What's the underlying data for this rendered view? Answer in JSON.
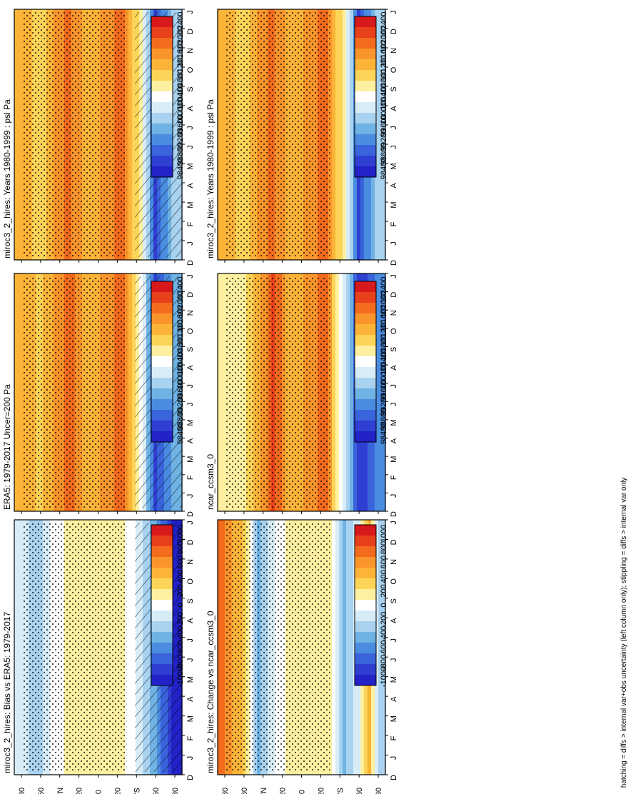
{
  "figure_note": "hatching = diffs > internal var+obs uncertainty (left column only); stippling = diffs > internal var only",
  "chart_data": [
    {
      "id": "p1",
      "type": "heatmap",
      "title": "miroc3_2_hires: Years 1980-1999 : psl Pa",
      "x_ticks": [
        "D",
        "J",
        "F",
        "M",
        "A",
        "M",
        "J",
        "J",
        "A",
        "S",
        "O",
        "N",
        "D",
        "J"
      ],
      "y_ticks": [
        "80",
        "60",
        "°N",
        "20",
        "0",
        "20",
        "°S",
        "60",
        "80"
      ],
      "colorbar": [
        "102400",
        "102000",
        "101600",
        "101200",
        "100800",
        "100400",
        "100000",
        "99600",
        "99200",
        "98800",
        "98400"
      ],
      "scale": "abs",
      "hatching": true,
      "stippling": true,
      "zonal_profile_pa": [
        {
          "lat": 85,
          "v": 101300
        },
        {
          "lat": 60,
          "v": 101000
        },
        {
          "lat": 30,
          "v": 101800
        },
        {
          "lat": 10,
          "v": 101100
        },
        {
          "lat": -25,
          "v": 101900
        },
        {
          "lat": -45,
          "v": 100600
        },
        {
          "lat": -60,
          "v": 98800
        },
        {
          "lat": -80,
          "v": 99800
        }
      ]
    },
    {
      "id": "p2",
      "type": "heatmap",
      "title": "miroc3_2_hires: Years 1980-1999 : psl Pa",
      "x_ticks": [
        "D",
        "J",
        "F",
        "M",
        "A",
        "M",
        "J",
        "J",
        "A",
        "S",
        "O",
        "N",
        "D",
        "J"
      ],
      "y_ticks": [
        "80",
        "60",
        "°N",
        "20",
        "0",
        "20",
        "°S",
        "60",
        "80"
      ],
      "colorbar": [
        "102400",
        "102000",
        "101600",
        "101200",
        "100800",
        "100400",
        "100000",
        "99600",
        "99200",
        "98800",
        "98400"
      ],
      "scale": "abs",
      "hatching": false,
      "stippling": true,
      "zonal_profile_pa": [
        {
          "lat": 85,
          "v": 101300
        },
        {
          "lat": 60,
          "v": 101000
        },
        {
          "lat": 30,
          "v": 101800
        },
        {
          "lat": 10,
          "v": 101100
        },
        {
          "lat": -25,
          "v": 101900
        },
        {
          "lat": -45,
          "v": 100600
        },
        {
          "lat": -60,
          "v": 98800
        },
        {
          "lat": -80,
          "v": 99800
        }
      ]
    },
    {
      "id": "p3",
      "type": "heatmap",
      "title": "ERA5: 1979-2017 Uncer=200 Pa",
      "x_ticks": [
        "D",
        "J",
        "F",
        "M",
        "A",
        "M",
        "J",
        "J",
        "A",
        "S",
        "O",
        "N",
        "D",
        "J"
      ],
      "y_ticks": [
        "80",
        "60",
        "°N",
        "20",
        "0",
        "20",
        "°S",
        "60",
        "80"
      ],
      "colorbar": [
        "102400",
        "102000",
        "101600",
        "101200",
        "100800",
        "100400",
        "100000",
        "99600",
        "99200",
        "98800",
        "98400"
      ],
      "scale": "abs",
      "hatching": true,
      "stippling": true,
      "zonal_profile_pa": [
        {
          "lat": 85,
          "v": 101400
        },
        {
          "lat": 60,
          "v": 101000
        },
        {
          "lat": 30,
          "v": 101900
        },
        {
          "lat": 10,
          "v": 101200
        },
        {
          "lat": -25,
          "v": 101800
        },
        {
          "lat": -45,
          "v": 100500
        },
        {
          "lat": -60,
          "v": 98700
        },
        {
          "lat": -80,
          "v": 99600
        }
      ]
    },
    {
      "id": "p4",
      "type": "heatmap",
      "title": "ncar_ccsm3_0",
      "x_ticks": [
        "D",
        "J",
        "F",
        "M",
        "A",
        "M",
        "J",
        "J",
        "A",
        "S",
        "O",
        "N",
        "D",
        "J"
      ],
      "y_ticks": [
        "80",
        "60",
        "°N",
        "20",
        "0",
        "20",
        "°S",
        "60",
        "80"
      ],
      "colorbar": [
        "102400",
        "102000",
        "101600",
        "101200",
        "100800",
        "100400",
        "100000",
        "99600",
        "99200",
        "98800",
        "98400"
      ],
      "scale": "abs",
      "hatching": false,
      "stippling": true,
      "zonal_profile_pa": [
        {
          "lat": 85,
          "v": 100600
        },
        {
          "lat": 60,
          "v": 100700
        },
        {
          "lat": 30,
          "v": 102000
        },
        {
          "lat": 10,
          "v": 101200
        },
        {
          "lat": -25,
          "v": 101800
        },
        {
          "lat": -45,
          "v": 100200
        },
        {
          "lat": -60,
          "v": 98600
        },
        {
          "lat": -80,
          "v": 99200
        }
      ]
    },
    {
      "id": "p5",
      "type": "heatmap",
      "title": "miroc3_2_hires: Bias vs ERA5: 1979-2017",
      "x_ticks": [
        "D",
        "J",
        "F",
        "M",
        "A",
        "M",
        "J",
        "J",
        "A",
        "S",
        "O",
        "N",
        "D",
        "J"
      ],
      "y_ticks": [
        "80",
        "60",
        "°N",
        "20",
        "0",
        "20",
        "°S",
        "60",
        "80"
      ],
      "colorbar": [
        "1000",
        "800",
        "600",
        "400",
        "200",
        "0",
        "-200",
        "-400",
        "-600",
        "-800",
        "-1000"
      ],
      "scale": "diff",
      "hatching": true,
      "stippling": true,
      "zonal_profile_pa": [
        {
          "lat": 85,
          "v": -100
        },
        {
          "lat": 65,
          "v": -300
        },
        {
          "lat": 45,
          "v": 0
        },
        {
          "lat": 20,
          "v": 200
        },
        {
          "lat": 0,
          "v": 100
        },
        {
          "lat": -25,
          "v": 150
        },
        {
          "lat": -45,
          "v": -200
        },
        {
          "lat": -60,
          "v": -500
        },
        {
          "lat": -80,
          "v": -1000
        }
      ]
    },
    {
      "id": "p6",
      "type": "heatmap",
      "title": "miroc3_2_hires: Change vs ncar_ccsm3_0",
      "x_ticks": [
        "D",
        "J",
        "F",
        "M",
        "A",
        "M",
        "J",
        "J",
        "A",
        "S",
        "O",
        "N",
        "D",
        "J"
      ],
      "y_ticks": [
        "80",
        "60",
        "°N",
        "20",
        "0",
        "20",
        "°S",
        "60",
        "80"
      ],
      "colorbar": [
        "1000",
        "800",
        "600",
        "400",
        "200",
        "0",
        "-200",
        "-400",
        "-600",
        "-800",
        "-1000"
      ],
      "scale": "diff",
      "hatching": false,
      "stippling": true,
      "zonal_profile_pa": [
        {
          "lat": 85,
          "v": 700
        },
        {
          "lat": 60,
          "v": 300
        },
        {
          "lat": 45,
          "v": -400
        },
        {
          "lat": 25,
          "v": 0
        },
        {
          "lat": 10,
          "v": 150
        },
        {
          "lat": -10,
          "v": 200
        },
        {
          "lat": -30,
          "v": 100
        },
        {
          "lat": -45,
          "v": -400
        },
        {
          "lat": -60,
          "v": -100
        },
        {
          "lat": -70,
          "v": 450
        },
        {
          "lat": -82,
          "v": -300
        }
      ]
    }
  ]
}
